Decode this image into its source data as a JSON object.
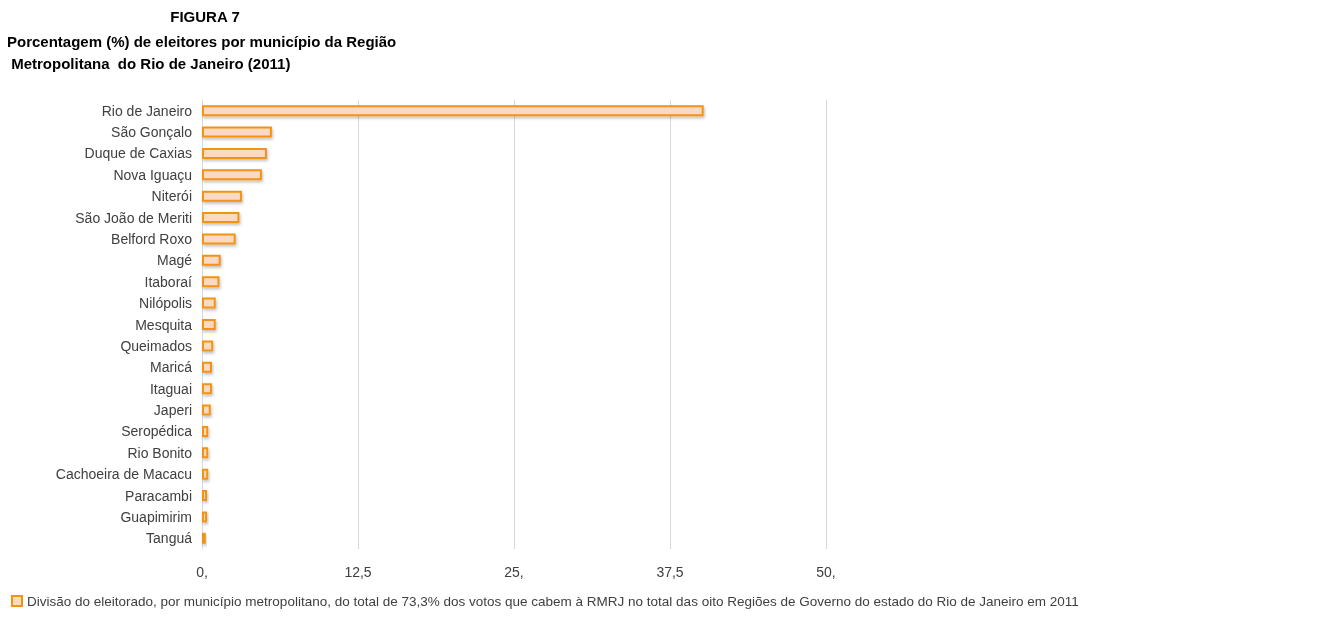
{
  "chart_data": {
    "type": "bar",
    "orientation": "horizontal",
    "title": "FIGURA 7",
    "subtitle": "Porcentagem (%) de eleitores por município da Região Metropolitana  do Rio de Janeiro (2011)",
    "categories": [
      "Rio de Janeiro",
      "São Gonçalo",
      "Duque de Caxias",
      "Nova Iguaçu",
      "Niterói",
      "São João de Meriti",
      "Belford Roxo",
      "Magé",
      "Itaboraí",
      "Nilópolis",
      "Mesquita",
      "Queimados",
      "Maricá",
      "Itaguai",
      "Japeri",
      "Seropédica",
      "Rio Bonito",
      "Cachoeira de Macacu",
      "Paracambi",
      "Guapimirim",
      "Tanguá"
    ],
    "series": [
      {
        "name": "Divisão do eleitorado, por município metropolitano, do total de 73,3% dos votos que cabem à RMRJ no total das oito Regiões de Governo do estado do Rio de Janeiro em 2011",
        "color": "#fcd9c4",
        "values": [
          40.2,
          5.6,
          5.2,
          4.8,
          3.2,
          3.0,
          2.7,
          1.5,
          1.4,
          1.1,
          1.1,
          0.9,
          0.8,
          0.8,
          0.7,
          0.5,
          0.5,
          0.5,
          0.4,
          0.4,
          0.3
        ]
      }
    ],
    "xlim": [
      0,
      50
    ],
    "xticks": [
      {
        "value": 0,
        "label": "0,"
      },
      {
        "value": 12.5,
        "label": "12,5"
      },
      {
        "value": 25,
        "label": "25,"
      },
      {
        "value": 37.5,
        "label": "37,5"
      },
      {
        "value": 50,
        "label": "50,"
      }
    ],
    "grid": "x",
    "legend": "bottom"
  }
}
